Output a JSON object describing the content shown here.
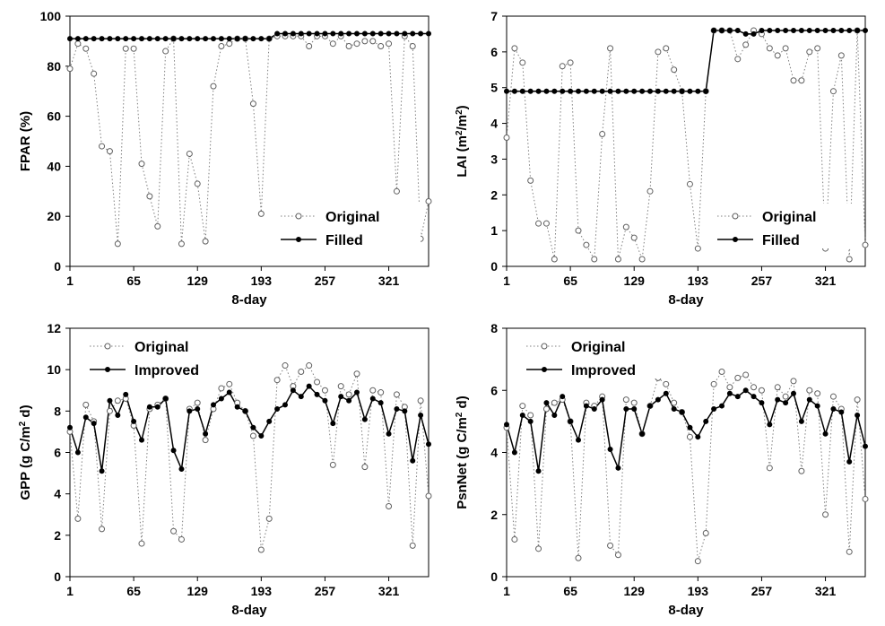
{
  "chart_data": [
    {
      "type": "line",
      "panel": "top-left",
      "ylabel": "FPAR (%)",
      "xlabel": "8-day",
      "xlim": [
        1,
        361
      ],
      "ylim": [
        0,
        100
      ],
      "xticks": [
        1,
        65,
        129,
        193,
        257,
        321
      ],
      "yticks": [
        0,
        20,
        40,
        60,
        80,
        100
      ],
      "legend": "bottom-right",
      "series": [
        {
          "name": "Original",
          "x": [
            1,
            9,
            17,
            25,
            33,
            41,
            49,
            57,
            65,
            73,
            81,
            89,
            97,
            105,
            113,
            121,
            129,
            137,
            145,
            153,
            161,
            169,
            177,
            185,
            193,
            201,
            209,
            217,
            225,
            233,
            241,
            249,
            257,
            265,
            273,
            281,
            289,
            297,
            305,
            313,
            321,
            329,
            337,
            345,
            353,
            361
          ],
          "values": [
            79,
            89,
            87,
            77,
            48,
            46,
            9,
            87,
            87,
            41,
            28,
            16,
            86,
            91,
            9,
            45,
            33,
            10,
            72,
            88,
            89,
            91,
            91,
            65,
            21,
            91,
            92,
            92,
            92,
            92,
            88,
            92,
            92,
            89,
            92,
            88,
            89,
            90,
            90,
            88,
            89,
            30,
            92,
            88,
            11,
            26
          ]
        },
        {
          "name": "Filled",
          "x": [
            1,
            9,
            17,
            25,
            33,
            41,
            49,
            57,
            65,
            73,
            81,
            89,
            97,
            105,
            113,
            121,
            129,
            137,
            145,
            153,
            161,
            169,
            177,
            185,
            193,
            201,
            209,
            217,
            225,
            233,
            241,
            249,
            257,
            265,
            273,
            281,
            289,
            297,
            305,
            313,
            321,
            329,
            337,
            345,
            353,
            361
          ],
          "values": [
            91,
            91,
            91,
            91,
            91,
            91,
            91,
            91,
            91,
            91,
            91,
            91,
            91,
            91,
            91,
            91,
            91,
            91,
            91,
            91,
            91,
            91,
            91,
            91,
            91,
            91,
            93,
            93,
            93,
            93,
            93,
            93,
            93,
            93,
            93,
            93,
            93,
            93,
            93,
            93,
            93,
            93,
            93,
            93,
            93,
            93
          ]
        }
      ]
    },
    {
      "type": "line",
      "panel": "top-right",
      "ylabel": "LAI (m²/m²)",
      "xlabel": "8-day",
      "xlim": [
        1,
        361
      ],
      "ylim": [
        0,
        7
      ],
      "xticks": [
        1,
        65,
        129,
        193,
        257,
        321
      ],
      "yticks": [
        0,
        1,
        2,
        3,
        4,
        5,
        6,
        7
      ],
      "legend": "bottom-right",
      "series": [
        {
          "name": "Original",
          "x": [
            1,
            9,
            17,
            25,
            33,
            41,
            49,
            57,
            65,
            73,
            81,
            89,
            97,
            105,
            113,
            121,
            129,
            137,
            145,
            153,
            161,
            169,
            177,
            185,
            193,
            201,
            209,
            217,
            225,
            233,
            241,
            249,
            257,
            265,
            273,
            281,
            289,
            297,
            305,
            313,
            321,
            329,
            337,
            345,
            353,
            361
          ],
          "values": [
            3.6,
            6.1,
            5.7,
            2.4,
            1.2,
            1.2,
            0.2,
            5.6,
            5.7,
            1.0,
            0.6,
            0.2,
            3.7,
            6.1,
            0.2,
            1.1,
            0.8,
            0.2,
            2.1,
            6.0,
            6.1,
            5.5,
            4.9,
            2.3,
            0.5,
            4.9,
            6.6,
            6.6,
            6.6,
            5.8,
            6.2,
            6.6,
            6.5,
            6.1,
            5.9,
            6.1,
            5.2,
            5.2,
            6.0,
            6.1,
            0.5,
            4.9,
            5.9,
            0.2,
            6.6,
            0.6
          ]
        },
        {
          "name": "Filled",
          "x": [
            1,
            9,
            17,
            25,
            33,
            41,
            49,
            57,
            65,
            73,
            81,
            89,
            97,
            105,
            113,
            121,
            129,
            137,
            145,
            153,
            161,
            169,
            177,
            185,
            193,
            201,
            209,
            217,
            225,
            233,
            241,
            249,
            257,
            265,
            273,
            281,
            289,
            297,
            305,
            313,
            321,
            329,
            337,
            345,
            353,
            361
          ],
          "values": [
            4.9,
            4.9,
            4.9,
            4.9,
            4.9,
            4.9,
            4.9,
            4.9,
            4.9,
            4.9,
            4.9,
            4.9,
            4.9,
            4.9,
            4.9,
            4.9,
            4.9,
            4.9,
            4.9,
            4.9,
            4.9,
            4.9,
            4.9,
            4.9,
            4.9,
            4.9,
            6.6,
            6.6,
            6.6,
            6.6,
            6.5,
            6.5,
            6.6,
            6.6,
            6.6,
            6.6,
            6.6,
            6.6,
            6.6,
            6.6,
            6.6,
            6.6,
            6.6,
            6.6,
            6.6,
            6.6
          ]
        }
      ]
    },
    {
      "type": "line",
      "panel": "bottom-left",
      "ylabel": "GPP (g C/m² d)",
      "xlabel": "8-day",
      "xlim": [
        1,
        361
      ],
      "ylim": [
        0,
        12
      ],
      "xticks": [
        1,
        65,
        129,
        193,
        257,
        321
      ],
      "yticks": [
        0,
        2,
        4,
        6,
        8,
        10,
        12
      ],
      "legend": "top-left",
      "series": [
        {
          "name": "Original",
          "x": [
            1,
            9,
            17,
            25,
            33,
            41,
            49,
            57,
            65,
            73,
            81,
            89,
            97,
            105,
            113,
            121,
            129,
            137,
            145,
            153,
            161,
            169,
            177,
            185,
            193,
            201,
            209,
            217,
            225,
            233,
            241,
            249,
            257,
            265,
            273,
            281,
            289,
            297,
            305,
            313,
            321,
            329,
            337,
            345,
            353,
            361
          ],
          "values": [
            7.0,
            2.8,
            8.3,
            7.5,
            2.3,
            8.0,
            8.5,
            8.6,
            7.3,
            1.6,
            8.1,
            8.3,
            8.6,
            2.2,
            1.8,
            8.1,
            8.4,
            6.6,
            8.1,
            9.1,
            9.3,
            8.4,
            8.0,
            6.8,
            1.3,
            2.8,
            9.5,
            10.2,
            9.2,
            9.9,
            10.2,
            9.4,
            9.0,
            5.4,
            9.2,
            8.8,
            9.8,
            5.3,
            9.0,
            8.9,
            3.4,
            8.8,
            8.2,
            1.5,
            8.5,
            3.9
          ]
        },
        {
          "name": "Improved",
          "x": [
            1,
            9,
            17,
            25,
            33,
            41,
            49,
            57,
            65,
            73,
            81,
            89,
            97,
            105,
            113,
            121,
            129,
            137,
            145,
            153,
            161,
            169,
            177,
            185,
            193,
            201,
            209,
            217,
            225,
            233,
            241,
            249,
            257,
            265,
            273,
            281,
            289,
            297,
            305,
            313,
            321,
            329,
            337,
            345,
            353,
            361
          ],
          "values": [
            7.2,
            6.0,
            7.7,
            7.4,
            5.1,
            8.5,
            7.8,
            8.8,
            7.5,
            6.6,
            8.2,
            8.2,
            8.6,
            6.1,
            5.2,
            8.0,
            8.1,
            6.9,
            8.3,
            8.6,
            8.9,
            8.2,
            8.0,
            7.2,
            6.8,
            7.5,
            8.1,
            8.3,
            9.0,
            8.7,
            9.2,
            8.8,
            8.5,
            7.4,
            8.7,
            8.5,
            8.9,
            7.6,
            8.6,
            8.4,
            6.9,
            8.1,
            8.0,
            5.6,
            7.8,
            6.4
          ]
        }
      ]
    },
    {
      "type": "line",
      "panel": "bottom-right",
      "ylabel": "PsnNet (g C/m² d)",
      "xlabel": "8-day",
      "xlim": [
        1,
        361
      ],
      "ylim": [
        0,
        8
      ],
      "xticks": [
        1,
        65,
        129,
        193,
        257,
        321
      ],
      "yticks": [
        0,
        2,
        4,
        6,
        8
      ],
      "legend": "top-left",
      "series": [
        {
          "name": "Original",
          "x": [
            1,
            9,
            17,
            25,
            33,
            41,
            49,
            57,
            65,
            73,
            81,
            89,
            97,
            105,
            113,
            121,
            129,
            137,
            145,
            153,
            161,
            169,
            177,
            185,
            193,
            201,
            209,
            217,
            225,
            233,
            241,
            249,
            257,
            265,
            273,
            281,
            289,
            297,
            305,
            313,
            321,
            329,
            337,
            345,
            353,
            361
          ],
          "values": [
            4.8,
            1.2,
            5.5,
            5.2,
            0.9,
            5.4,
            5.6,
            5.7,
            5.0,
            0.6,
            5.6,
            5.5,
            5.8,
            1.0,
            0.7,
            5.7,
            5.6,
            4.6,
            5.5,
            6.4,
            6.2,
            5.6,
            5.3,
            4.5,
            0.5,
            1.4,
            6.2,
            6.6,
            6.1,
            6.4,
            6.5,
            6.1,
            6.0,
            3.5,
            6.1,
            5.8,
            6.3,
            3.4,
            6.0,
            5.9,
            2.0,
            5.8,
            5.4,
            0.8,
            5.7,
            2.5
          ]
        },
        {
          "name": "Improved",
          "x": [
            1,
            9,
            17,
            25,
            33,
            41,
            49,
            57,
            65,
            73,
            81,
            89,
            97,
            105,
            113,
            121,
            129,
            137,
            145,
            153,
            161,
            169,
            177,
            185,
            193,
            201,
            209,
            217,
            225,
            233,
            241,
            249,
            257,
            265,
            273,
            281,
            289,
            297,
            305,
            313,
            321,
            329,
            337,
            345,
            353,
            361
          ],
          "values": [
            4.9,
            4.0,
            5.2,
            5.0,
            3.4,
            5.6,
            5.2,
            5.8,
            5.0,
            4.4,
            5.5,
            5.4,
            5.7,
            4.1,
            3.5,
            5.4,
            5.4,
            4.6,
            5.5,
            5.7,
            5.9,
            5.4,
            5.3,
            4.8,
            4.5,
            5.0,
            5.4,
            5.5,
            5.9,
            5.8,
            6.0,
            5.8,
            5.6,
            4.9,
            5.7,
            5.6,
            5.9,
            5.0,
            5.7,
            5.5,
            4.6,
            5.4,
            5.3,
            3.7,
            5.2,
            4.2
          ]
        }
      ]
    }
  ]
}
